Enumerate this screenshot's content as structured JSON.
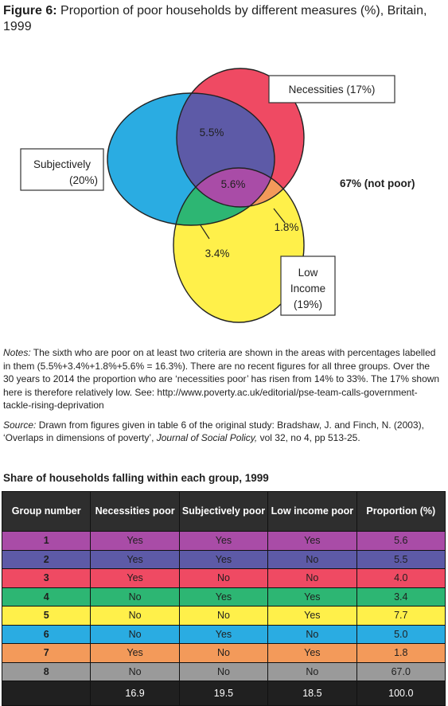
{
  "figure": {
    "label": "Figure 6:",
    "title": "Proportion of poor households by different measures (%), Britain, 1999"
  },
  "venn": {
    "colors": {
      "subjective": "#2aace2",
      "necessities": "#ef4a63",
      "low_income": "#fff04a",
      "subj_nec": "#5d5aa7",
      "all_three": "#a94ca7",
      "subj_low": "#2db673",
      "nec_low": "#f39a5a"
    },
    "labels": {
      "necessities": "Necessities  (17%)",
      "subjectively_line1": "Subjectively",
      "subjectively_line2": "(20%)",
      "low_income_line1": "Low",
      "low_income_line2": "Income",
      "low_income_line3": "(19%)",
      "not_poor": "67% (not poor)"
    },
    "values": {
      "subj_nec": "5.5%",
      "all_three": "5.6%",
      "subj_low": "3.4%",
      "nec_low": "1.8%"
    }
  },
  "notes": {
    "notes_label": "Notes:",
    "notes_text": " The sixth who are poor on at least two criteria are shown in the areas with percentages labelled in them (5.5%+3.4%+1.8%+5.6% = 16.3%). There are no recent figures for all three groups. Over the 30 years to 2014 the proportion who are ‘necessities poor’ has risen from 14% to 33%. The 17% shown here is therefore relatively low.  See: http://www.poverty.ac.uk/editorial/pse-team-calls-government-tackle-rising-deprivation",
    "source_label": "Source:",
    "source_text_1": " Drawn from figures given in table 6 of the original study: Bradshaw, J. and Finch, N. (2003), ‘Overlaps in dimensions of poverty’, ",
    "source_journal": "Journal of Social Policy,",
    "source_text_2": " vol 32, no 4, pp 513-25."
  },
  "table": {
    "title": "Share of households falling within each group, 1999",
    "headers": [
      "Group number",
      "Necessities poor",
      "Subjectively poor",
      "Low income poor",
      "Proportion (%)"
    ],
    "rows": [
      {
        "cells": [
          "1",
          "Yes",
          "Yes",
          "Yes",
          "5.6"
        ],
        "color": "#a94ca7"
      },
      {
        "cells": [
          "2",
          "Yes",
          "Yes",
          "No",
          "5.5"
        ],
        "color": "#5d5aa7"
      },
      {
        "cells": [
          "3",
          "Yes",
          "No",
          "No",
          "4.0"
        ],
        "color": "#ef4a63"
      },
      {
        "cells": [
          "4",
          "No",
          "Yes",
          "Yes",
          "3.4"
        ],
        "color": "#2db673"
      },
      {
        "cells": [
          "5",
          "No",
          "No",
          "Yes",
          "7.7"
        ],
        "color": "#fff04a"
      },
      {
        "cells": [
          "6",
          "No",
          "Yes",
          "No",
          "5.0"
        ],
        "color": "#2aace2"
      },
      {
        "cells": [
          "7",
          "Yes",
          "No",
          "Yes",
          "1.8"
        ],
        "color": "#f39a5a"
      },
      {
        "cells": [
          "8",
          "No",
          "No",
          "No",
          "67.0"
        ],
        "color": "#9a9a9a"
      }
    ],
    "totals": [
      "",
      "16.9",
      "19.5",
      "18.5",
      "100.0"
    ]
  }
}
